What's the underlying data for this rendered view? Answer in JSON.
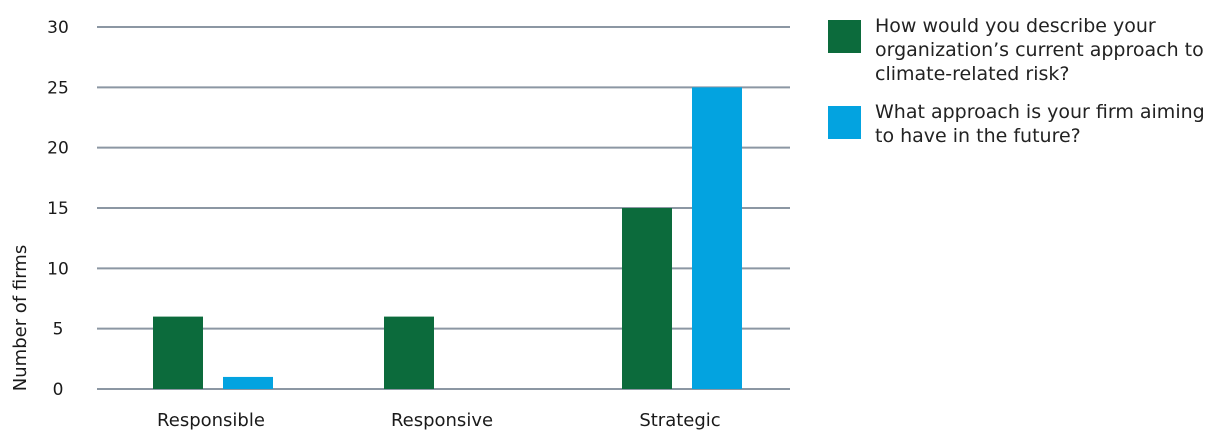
{
  "chart_data": {
    "type": "bar",
    "categories": [
      "Responsible",
      "Responsive",
      "Strategic"
    ],
    "series": [
      {
        "name": "How would you describe your organization’s current approach to climate-related risk?",
        "color": "#0c6b3c",
        "values": [
          6,
          6,
          15
        ]
      },
      {
        "name": "What approach is your firm aiming to have in the future?",
        "color": "#03a3e0",
        "values": [
          1,
          0,
          25
        ]
      }
    ],
    "ylabel": "Number of firms",
    "yticks": [
      "30",
      "25",
      "20",
      "15",
      "10",
      "5",
      "0"
    ],
    "ylim": [
      0,
      30
    ],
    "grid": true,
    "legend": "right"
  }
}
